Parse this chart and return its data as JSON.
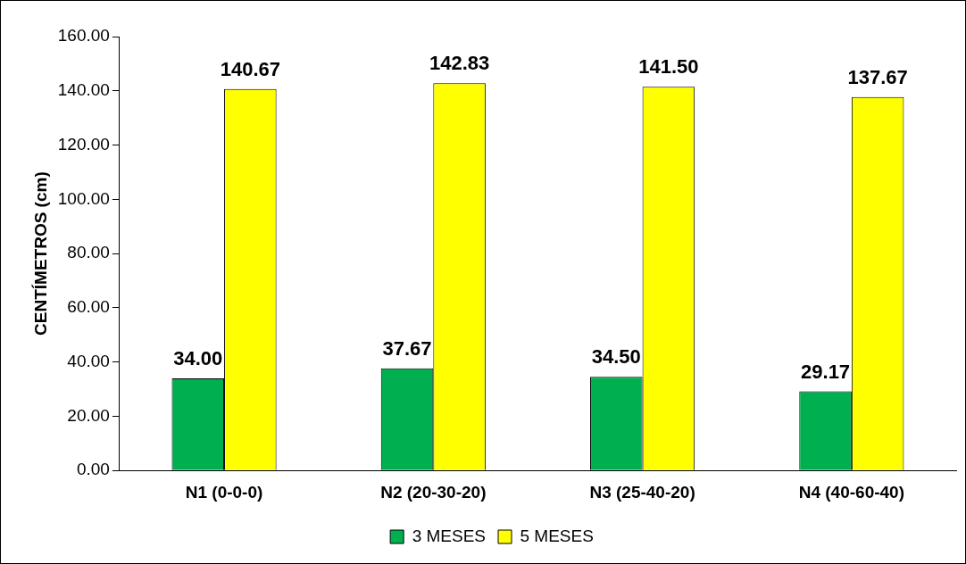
{
  "chart_data": {
    "type": "bar",
    "ylabel": "CENTÍMETROS (cm)",
    "categories": [
      "N1 (0-0-0)",
      "N2 (20-30-20)",
      "N3 (25-40-20)",
      "N4 (40-60-40)"
    ],
    "series": [
      {
        "name": "3 MESES",
        "color": "#00b050",
        "values": [
          34.0,
          37.67,
          34.5,
          29.17
        ],
        "value_labels": [
          "34.00",
          "37.67",
          "34.50",
          "29.17"
        ]
      },
      {
        "name": "5 MESES",
        "color": "#ffff00",
        "values": [
          140.67,
          142.83,
          141.5,
          137.67
        ],
        "value_labels": [
          "140.67",
          "142.83",
          "141.50",
          "137.67"
        ]
      }
    ],
    "ylim": [
      0,
      160
    ],
    "yticks": [
      {
        "value": 0,
        "label": "0.00"
      },
      {
        "value": 20,
        "label": "20.00"
      },
      {
        "value": 40,
        "label": "40.00"
      },
      {
        "value": 60,
        "label": "60.00"
      },
      {
        "value": 80,
        "label": "80.00"
      },
      {
        "value": 100,
        "label": "100.00"
      },
      {
        "value": 120,
        "label": "120.00"
      },
      {
        "value": 140,
        "label": "140.00"
      },
      {
        "value": 160,
        "label": "160.00"
      }
    ],
    "grid": false,
    "legend": "bottom"
  }
}
